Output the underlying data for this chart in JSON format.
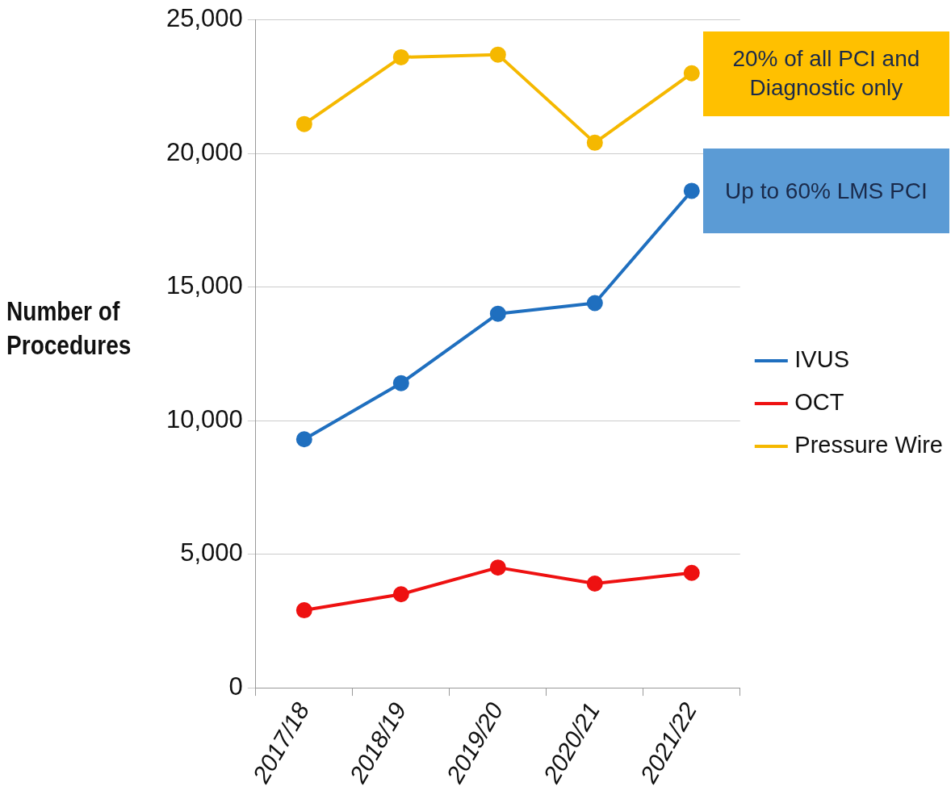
{
  "chart_data": {
    "type": "line",
    "ylabel": "Number of Procedures",
    "categories": [
      "2017/18",
      "2018/19",
      "2019/20",
      "2020/21",
      "2021/22"
    ],
    "series": [
      {
        "name": "IVUS",
        "color": "#1f6fbf",
        "values": [
          9300,
          11400,
          14000,
          14400,
          18600
        ]
      },
      {
        "name": "OCT",
        "color": "#ee1111",
        "values": [
          2900,
          3500,
          4500,
          3900,
          4300
        ]
      },
      {
        "name": "Pressure Wire",
        "color": "#f5b800",
        "values": [
          21100,
          23600,
          23700,
          20400,
          23000
        ]
      }
    ],
    "ylim": [
      0,
      25000
    ],
    "yticks": [
      0,
      {
        "value": 5000,
        "label": "5,000"
      },
      {
        "value": 10000,
        "label": "10,000"
      },
      {
        "value": 15000,
        "label": "15,000"
      },
      {
        "value": 20000,
        "label": "20,000"
      },
      {
        "value": 25000,
        "label": "25,000"
      }
    ],
    "annotations": [
      {
        "text": "20% of all PCI and Diagnostic only",
        "x": "2021/22",
        "y": 23000
      },
      {
        "text": "Up to 60% LMS PCI",
        "x": "2021/22",
        "y": 18600
      }
    ],
    "grid": "y",
    "legend": "right",
    "marker": "circle",
    "line_style": "solid"
  }
}
